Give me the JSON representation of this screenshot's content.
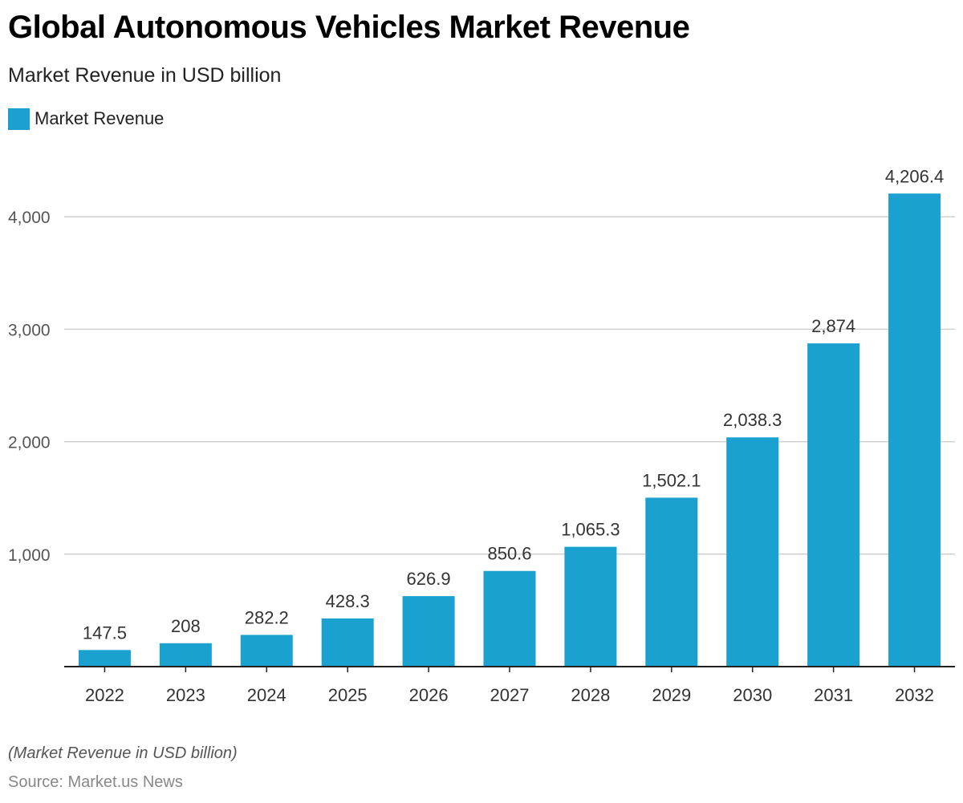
{
  "chart_data": {
    "type": "bar",
    "title": "Global Autonomous Vehicles Market Revenue",
    "subtitle": "Market Revenue in USD billion",
    "categories": [
      "2022",
      "2023",
      "2024",
      "2025",
      "2026",
      "2027",
      "2028",
      "2029",
      "2030",
      "2031",
      "2032"
    ],
    "series": [
      {
        "name": "Market Revenue",
        "values": [
          147.5,
          208,
          282.2,
          428.3,
          626.9,
          850.6,
          1065.3,
          1502.1,
          2038.3,
          2874,
          4206.4
        ],
        "data_labels": [
          "147.5",
          "208",
          "282.2",
          "428.3",
          "626.9",
          "850.6",
          "1,065.3",
          "1,502.1",
          "2,038.3",
          "2,874",
          "4,206.4"
        ],
        "color": "#1aa1d0"
      }
    ],
    "yticks": [
      1000,
      2000,
      3000,
      4000
    ],
    "ytick_labels": [
      "1,000",
      "2,000",
      "3,000",
      "4,000"
    ],
    "ylim": [
      0,
      4400
    ],
    "grid": true,
    "legend_position": "top-left",
    "footnote": "(Market Revenue in USD billion)",
    "source": "Source: Market.us News"
  },
  "colors": {
    "bar": "#1aa1d0",
    "gridline": "#d0d0d0",
    "axis": "#222222",
    "tick_label": "#555555",
    "data_label": "#333333"
  }
}
